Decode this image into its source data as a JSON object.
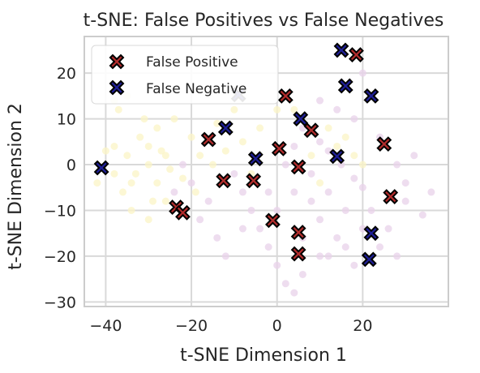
{
  "chart_data": {
    "type": "scatter",
    "title": "t-SNE: False Positives vs False Negatives",
    "xlabel": "t-SNE Dimension 1",
    "ylabel": "t-SNE Dimension 2",
    "xlim": [
      -45,
      40
    ],
    "ylim": [
      -31,
      28
    ],
    "xticks": [
      -40,
      -20,
      0,
      20
    ],
    "yticks": [
      -30,
      -20,
      -10,
      0,
      10,
      20
    ],
    "grid": true,
    "legend_position": "upper-left",
    "series": [
      {
        "name": "False Positive",
        "color": "#b22d2d",
        "marker": "X",
        "points": [
          [
            18.5,
            24
          ],
          [
            2,
            15
          ],
          [
            8,
            7.5
          ],
          [
            -16,
            5.5
          ],
          [
            25,
            4.5
          ],
          [
            0.5,
            3.5
          ],
          [
            5,
            -0.5
          ],
          [
            -12.5,
            -3.5
          ],
          [
            -5.5,
            -3.5
          ],
          [
            26.5,
            -7
          ],
          [
            -23.5,
            -9.3
          ],
          [
            -22,
            -10.5
          ],
          [
            -1,
            -12.2
          ],
          [
            5,
            -14.8
          ],
          [
            5,
            -19.5
          ]
        ]
      },
      {
        "name": "False Negative",
        "color": "#1f1f96",
        "marker": "X",
        "points": [
          [
            15,
            25
          ],
          [
            16,
            17.2
          ],
          [
            22,
            15
          ],
          [
            -9,
            15.3
          ],
          [
            5.5,
            10
          ],
          [
            -12,
            8
          ],
          [
            -5,
            1.3
          ],
          [
            14,
            1.8
          ],
          [
            -41,
            -0.7
          ],
          [
            22,
            -15
          ],
          [
            21.5,
            -20.7
          ]
        ]
      },
      {
        "name": "",
        "color": "#e8d2ea",
        "marker": "o",
        "points": [
          [
            10,
            5
          ],
          [
            12,
            3
          ],
          [
            15,
            0
          ],
          [
            18,
            -3
          ],
          [
            20,
            -5
          ],
          [
            8,
            -8
          ],
          [
            10,
            -12
          ],
          [
            14,
            -16
          ],
          [
            16,
            -18
          ],
          [
            18,
            -22
          ],
          [
            12,
            -20
          ],
          [
            6,
            -24
          ],
          [
            4,
            -28
          ],
          [
            2,
            -26
          ],
          [
            0,
            -22
          ],
          [
            -2,
            -18
          ],
          [
            -4,
            -14
          ],
          [
            -6,
            -10
          ],
          [
            -8,
            -6
          ],
          [
            -10,
            -2
          ],
          [
            2,
            0
          ],
          [
            4,
            4
          ],
          [
            6,
            8
          ],
          [
            22,
            -10
          ],
          [
            26,
            -14
          ],
          [
            30,
            -8
          ],
          [
            34,
            -11
          ],
          [
            28,
            0
          ],
          [
            24,
            6
          ],
          [
            18,
            10
          ],
          [
            14,
            12
          ],
          [
            10,
            14
          ],
          [
            -2,
            -6
          ],
          [
            0,
            -10
          ],
          [
            4,
            -6
          ],
          [
            8,
            -2
          ],
          [
            12,
            -6
          ],
          [
            16,
            -10
          ],
          [
            20,
            -14
          ],
          [
            24,
            -18
          ],
          [
            6,
            -16
          ],
          [
            10,
            -20
          ],
          [
            -8,
            -14
          ],
          [
            -12,
            -20
          ],
          [
            -14,
            -16
          ],
          [
            -18,
            -12
          ],
          [
            -16,
            -8
          ],
          [
            -20,
            -4
          ],
          [
            -22,
            0
          ],
          [
            -24,
            -6
          ],
          [
            30,
            -4
          ],
          [
            32,
            2
          ],
          [
            36,
            -6
          ],
          [
            28,
            -20
          ],
          [
            20,
            20
          ]
        ]
      },
      {
        "name": "",
        "color": "#fbf4c6",
        "marker": "o",
        "points": [
          [
            -38,
            4
          ],
          [
            -35,
            2
          ],
          [
            -32,
            6
          ],
          [
            -30,
            0
          ],
          [
            -28,
            -4
          ],
          [
            -26,
            -8
          ],
          [
            -36,
            -6
          ],
          [
            -34,
            -10
          ],
          [
            -30,
            -12
          ],
          [
            -28,
            8
          ],
          [
            -24,
            10
          ],
          [
            -20,
            6
          ],
          [
            -38,
            -2
          ],
          [
            -40,
            3
          ],
          [
            -42,
            -4
          ],
          [
            -33,
            -2
          ],
          [
            -27,
            3
          ],
          [
            -25,
            -1
          ],
          [
            -22,
            -3
          ],
          [
            -31,
            10
          ],
          [
            -29,
            -8
          ],
          [
            -37,
            12
          ],
          [
            -35,
            15
          ],
          [
            -26,
            2
          ],
          [
            -19,
            -6
          ],
          [
            -15,
            0
          ],
          [
            -12,
            3
          ],
          [
            -8,
            5
          ],
          [
            -4,
            8
          ],
          [
            0,
            12
          ],
          [
            -10,
            12
          ],
          [
            -14,
            9
          ],
          [
            4,
            12
          ],
          [
            8,
            2
          ],
          [
            12,
            8
          ],
          [
            -18,
            2
          ],
          [
            -6,
            -2
          ],
          [
            -30,
            4
          ],
          [
            -34,
            -4
          ],
          [
            -38,
            14
          ],
          [
            14,
            4
          ],
          [
            16,
            6
          ],
          [
            18,
            2
          ],
          [
            20,
            0
          ],
          [
            10,
            -4
          ]
        ]
      }
    ]
  }
}
